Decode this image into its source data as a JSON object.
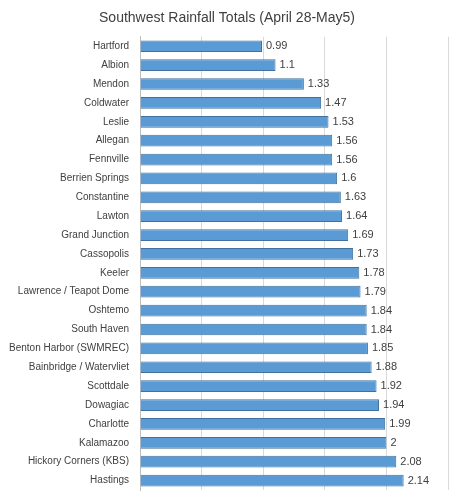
{
  "chart_data": {
    "type": "bar",
    "orientation": "horizontal",
    "title": "Southwest Rainfall Totals (April 28-May5)",
    "categories": [
      "Hartford",
      "Albion",
      "Mendon",
      "Coldwater",
      "Leslie",
      "Allegan",
      "Fennville",
      "Berrien Springs",
      "Constantine",
      "Lawton",
      "Grand Junction",
      "Cassopolis",
      "Keeler",
      "Lawrence / Teapot Dome",
      "Oshtemo",
      "South Haven",
      "Benton Harbor (SWMREC)",
      "Bainbridge / Watervliet",
      "Scottdale",
      "Dowagiac",
      "Charlotte",
      "Kalamazoo",
      "Hickory Corners (KBS)",
      "Hastings"
    ],
    "values": [
      0.99,
      1.1,
      1.33,
      1.47,
      1.53,
      1.56,
      1.56,
      1.6,
      1.63,
      1.64,
      1.69,
      1.73,
      1.78,
      1.79,
      1.84,
      1.84,
      1.85,
      1.88,
      1.92,
      1.94,
      1.99,
      2,
      2.08,
      2.14
    ],
    "color": "#5b9bd5",
    "xlim": [
      0,
      2.5
    ],
    "xticks": [
      0,
      0.5,
      1,
      1.5,
      2,
      2.5
    ],
    "grid": true,
    "data_labels": true,
    "tick_labels": "y"
  }
}
